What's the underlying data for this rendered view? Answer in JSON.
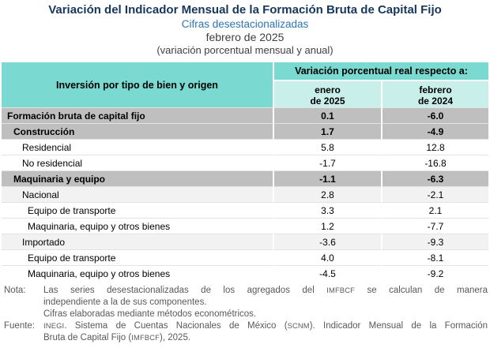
{
  "header": {
    "title": "Variación del Indicador Mensual de la Formación Bruta de Capital Fijo",
    "subtitle": "Cifras desestacionalizadas",
    "period": "febrero de 2025",
    "measure_note": "(variación porcentual mensual y anual)"
  },
  "table": {
    "col1_header": "Inversión por tipo de bien y origen",
    "group_header": "Variación porcentual real respecto a:",
    "col_headers": [
      {
        "line1": "enero",
        "line2": "de 2025"
      },
      {
        "line1": "febrero",
        "line2": "de 2024"
      }
    ],
    "rows": [
      {
        "label": "Formación bruta de capital fijo",
        "enero_2025": "0.1",
        "febrero_2024": "-6.0",
        "indent": 0,
        "bold": true,
        "bg": "silver"
      },
      {
        "label": "Construcción",
        "enero_2025": "1.7",
        "febrero_2024": "-4.9",
        "indent": 1,
        "bold": true,
        "bg": "silver"
      },
      {
        "label": "Residencial",
        "enero_2025": "5.8",
        "febrero_2024": "12.8",
        "indent": 2,
        "bold": false,
        "bg": "white"
      },
      {
        "label": "No residencial",
        "enero_2025": "-1.7",
        "febrero_2024": "-16.8",
        "indent": 2,
        "bold": false,
        "bg": "white"
      },
      {
        "label": "Maquinaria y equipo",
        "enero_2025": "-1.1",
        "febrero_2024": "-6.3",
        "indent": 1,
        "bold": true,
        "bg": "silver"
      },
      {
        "label": "Nacional",
        "enero_2025": "2.8",
        "febrero_2024": "-2.1",
        "indent": 2,
        "bold": false,
        "bg": "lightgray"
      },
      {
        "label": "Equipo de transporte",
        "enero_2025": "3.3",
        "febrero_2024": "2.1",
        "indent": 3,
        "bold": false,
        "bg": "white"
      },
      {
        "label": "Maquinaria, equipo y otros bienes",
        "enero_2025": "1.2",
        "febrero_2024": "-7.7",
        "indent": 3,
        "bold": false,
        "bg": "white"
      },
      {
        "label": "Importado",
        "enero_2025": "-3.6",
        "febrero_2024": "-9.3",
        "indent": 2,
        "bold": false,
        "bg": "lightgray"
      },
      {
        "label": "Equipo de transporte",
        "enero_2025": "4.0",
        "febrero_2024": "-8.1",
        "indent": 3,
        "bold": false,
        "bg": "white"
      },
      {
        "label": "Maquinaria, equipo y otros bienes",
        "enero_2025": "-4.5",
        "febrero_2024": "-9.2",
        "indent": 3,
        "bold": false,
        "bg": "white"
      }
    ]
  },
  "notes": {
    "nota_label": "Nota:",
    "nota_line1": {
      "a": "Las series desestacionalizadas de los agregados del ",
      "b": "IMFBCF",
      "c": " se calculan de manera"
    },
    "nota_line2": "independiente a la de sus componentes.",
    "nota_line3": "Cifras elaboradas mediante métodos econométricos.",
    "fuente_label": "Fuente:",
    "fuente_line1": {
      "a": "INEGI",
      "b": ". Sistema de Cuentas Nacionales de México (",
      "c": "SCNM",
      "d": "). Indicador Mensual de la Formación"
    },
    "fuente_line2": {
      "a": "Bruta de Capital Fijo (",
      "b": "IMFBCF",
      "c": "), 2025."
    }
  },
  "colors": {
    "title_navy": "#17365D",
    "subtitle_blue": "#2E74B5",
    "body_gray": "#3F3F3F",
    "note_gray": "#595959",
    "teal_header": "#7AD9D1",
    "teal_subheader": "#C9EFEB",
    "row_silver": "#BFBFBF",
    "row_lightgray": "#F2F2F2",
    "row_border": "#E3E3E3"
  }
}
